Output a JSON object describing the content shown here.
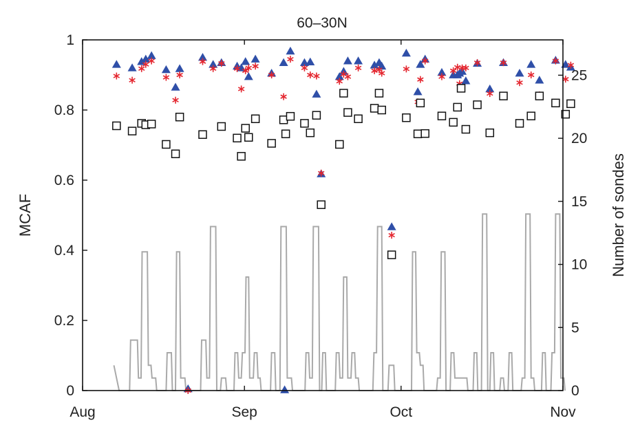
{
  "chart_data": {
    "type": "scatter",
    "title": "60–30N",
    "ylabel": "MCAF",
    "ylabel_right": "Number of sondes",
    "x_ticks": [
      "Aug",
      "Sep",
      "Oct",
      "Nov"
    ],
    "xlim_days": [
      0,
      92
    ],
    "ylim": [
      0,
      1
    ],
    "ylim_right": [
      0,
      27.8
    ],
    "yticks_left": [
      "0",
      "0.2",
      "0.4",
      "0.6",
      "0.8",
      "1"
    ],
    "yticks_right": [
      "0",
      "5",
      "10",
      "15",
      "20",
      "25"
    ],
    "grid": false,
    "series": [
      {
        "marker": "triangle",
        "color": "#2f4fa8",
        "points": [
          [
            6.5,
            0.93
          ],
          [
            9.5,
            0.92
          ],
          [
            11.3,
            0.938
          ],
          [
            12.1,
            0.945
          ],
          [
            13.2,
            0.955
          ],
          [
            16.0,
            0.915
          ],
          [
            17.8,
            0.865
          ],
          [
            18.6,
            0.918
          ],
          [
            20.2,
            0.005
          ],
          [
            23.0,
            0.95
          ],
          [
            25.0,
            0.93
          ],
          [
            26.6,
            0.935
          ],
          [
            29.6,
            0.925
          ],
          [
            30.4,
            0.92
          ],
          [
            31.2,
            0.938
          ],
          [
            31.8,
            0.895
          ],
          [
            33.1,
            0.945
          ],
          [
            36.2,
            0.905
          ],
          [
            38.5,
            0.935
          ],
          [
            38.7,
            0.002
          ],
          [
            39.8,
            0.968
          ],
          [
            42.5,
            0.935
          ],
          [
            43.6,
            0.937
          ],
          [
            44.8,
            0.845
          ],
          [
            45.7,
            0.618
          ],
          [
            49.2,
            0.895
          ],
          [
            50.0,
            0.91
          ],
          [
            50.8,
            0.94
          ],
          [
            52.8,
            0.94
          ],
          [
            55.9,
            0.928
          ],
          [
            56.8,
            0.935
          ],
          [
            57.3,
            0.925
          ],
          [
            59.2,
            0.467
          ],
          [
            62.0,
            0.962
          ],
          [
            64.2,
            0.852
          ],
          [
            64.7,
            0.93
          ],
          [
            65.6,
            0.945
          ],
          [
            68.8,
            0.907
          ],
          [
            71.0,
            0.9
          ],
          [
            71.8,
            0.9
          ],
          [
            72.2,
            0.905
          ],
          [
            72.7,
            0.91
          ],
          [
            73.4,
            0.883
          ],
          [
            75.6,
            0.933
          ],
          [
            78.0,
            0.86
          ],
          [
            80.6,
            0.935
          ],
          [
            83.7,
            0.905
          ],
          [
            85.9,
            0.93
          ],
          [
            87.5,
            0.885
          ],
          [
            90.6,
            0.942
          ],
          [
            92.5,
            0.93
          ],
          [
            93.5,
            0.922
          ]
        ]
      },
      {
        "marker": "asterisk",
        "color": "#e4262f",
        "points": [
          [
            6.5,
            0.897
          ],
          [
            9.5,
            0.885
          ],
          [
            11.3,
            0.918
          ],
          [
            12.1,
            0.93
          ],
          [
            13.2,
            0.94
          ],
          [
            16.0,
            0.893
          ],
          [
            17.8,
            0.828
          ],
          [
            18.6,
            0.9
          ],
          [
            20.2,
            0.0
          ],
          [
            23.0,
            0.938
          ],
          [
            25.0,
            0.918
          ],
          [
            26.6,
            0.933
          ],
          [
            29.6,
            0.918
          ],
          [
            30.4,
            0.86
          ],
          [
            31.2,
            0.912
          ],
          [
            31.8,
            0.92
          ],
          [
            33.1,
            0.925
          ],
          [
            36.2,
            0.9
          ],
          [
            38.5,
            0.838
          ],
          [
            39.8,
            0.945
          ],
          [
            42.5,
            0.92
          ],
          [
            43.6,
            0.9
          ],
          [
            44.8,
            0.897
          ],
          [
            45.7,
            0.62
          ],
          [
            49.2,
            0.882
          ],
          [
            50.0,
            0.902
          ],
          [
            50.8,
            0.895
          ],
          [
            52.8,
            0.92
          ],
          [
            55.9,
            0.912
          ],
          [
            56.8,
            0.915
          ],
          [
            57.3,
            0.905
          ],
          [
            59.2,
            0.443
          ],
          [
            62.0,
            0.917
          ],
          [
            64.2,
            0.823
          ],
          [
            64.7,
            0.887
          ],
          [
            65.6,
            0.94
          ],
          [
            68.8,
            0.895
          ],
          [
            71.0,
            0.912
          ],
          [
            71.8,
            0.922
          ],
          [
            72.2,
            0.875
          ],
          [
            72.7,
            0.92
          ],
          [
            73.4,
            0.92
          ],
          [
            75.6,
            0.935
          ],
          [
            78.0,
            0.847
          ],
          [
            80.6,
            0.935
          ],
          [
            83.7,
            0.878
          ],
          [
            85.9,
            0.9
          ],
          [
            87.5,
            0.843
          ],
          [
            90.6,
            0.94
          ],
          [
            92.5,
            0.888
          ],
          [
            93.5,
            0.928
          ]
        ]
      },
      {
        "marker": "square",
        "color": "#111111",
        "points": [
          [
            6.5,
            0.755
          ],
          [
            9.5,
            0.74
          ],
          [
            11.3,
            0.762
          ],
          [
            12.1,
            0.758
          ],
          [
            13.2,
            0.76
          ],
          [
            16.0,
            0.702
          ],
          [
            17.8,
            0.675
          ],
          [
            18.6,
            0.78
          ],
          [
            23.0,
            0.73
          ],
          [
            26.6,
            0.753
          ],
          [
            29.6,
            0.72
          ],
          [
            30.4,
            0.668
          ],
          [
            31.2,
            0.748
          ],
          [
            31.8,
            0.722
          ],
          [
            33.1,
            0.775
          ],
          [
            36.2,
            0.705
          ],
          [
            38.5,
            0.772
          ],
          [
            38.9,
            0.732
          ],
          [
            39.8,
            0.782
          ],
          [
            42.5,
            0.762
          ],
          [
            43.6,
            0.735
          ],
          [
            44.8,
            0.785
          ],
          [
            45.7,
            0.53
          ],
          [
            49.2,
            0.702
          ],
          [
            50.0,
            0.848
          ],
          [
            50.8,
            0.793
          ],
          [
            52.8,
            0.775
          ],
          [
            55.9,
            0.805
          ],
          [
            56.8,
            0.848
          ],
          [
            57.3,
            0.8
          ],
          [
            59.2,
            0.387
          ],
          [
            62.0,
            0.778
          ],
          [
            64.2,
            0.732
          ],
          [
            64.7,
            0.82
          ],
          [
            65.6,
            0.733
          ],
          [
            68.8,
            0.783
          ],
          [
            71.0,
            0.765
          ],
          [
            71.8,
            0.808
          ],
          [
            72.5,
            0.862
          ],
          [
            73.4,
            0.745
          ],
          [
            75.6,
            0.815
          ],
          [
            78.0,
            0.735
          ],
          [
            80.6,
            0.84
          ],
          [
            83.7,
            0.762
          ],
          [
            85.9,
            0.783
          ],
          [
            87.5,
            0.84
          ],
          [
            90.6,
            0.82
          ],
          [
            92.5,
            0.788
          ],
          [
            93.5,
            0.818
          ]
        ]
      },
      {
        "name": "Number of sondes",
        "axis": "right",
        "style": "step",
        "color": "#a9a9a9",
        "steps": [
          [
            6.0,
            2
          ],
          [
            7.0,
            0
          ],
          [
            9.0,
            0
          ],
          [
            9.2,
            4
          ],
          [
            10.5,
            4
          ],
          [
            10.7,
            1
          ],
          [
            11.2,
            1
          ],
          [
            11.4,
            11
          ],
          [
            12.4,
            11
          ],
          [
            12.6,
            2
          ],
          [
            13.1,
            2
          ],
          [
            13.3,
            1
          ],
          [
            14.0,
            1
          ],
          [
            14.2,
            0
          ],
          [
            16.0,
            0
          ],
          [
            16.2,
            3
          ],
          [
            17.0,
            3
          ],
          [
            17.2,
            0
          ],
          [
            17.8,
            0
          ],
          [
            18.0,
            11
          ],
          [
            18.6,
            11
          ],
          [
            18.8,
            1
          ],
          [
            19.6,
            1
          ],
          [
            19.8,
            0
          ],
          [
            22.6,
            0
          ],
          [
            22.8,
            4
          ],
          [
            23.6,
            4
          ],
          [
            23.8,
            1
          ],
          [
            24.3,
            1
          ],
          [
            24.5,
            13
          ],
          [
            25.5,
            13
          ],
          [
            25.7,
            0
          ],
          [
            26.4,
            0
          ],
          [
            26.6,
            1
          ],
          [
            27.4,
            1
          ],
          [
            27.6,
            0
          ],
          [
            29.0,
            0
          ],
          [
            29.2,
            3
          ],
          [
            29.7,
            3
          ],
          [
            29.9,
            1
          ],
          [
            30.4,
            1
          ],
          [
            30.6,
            3
          ],
          [
            31.1,
            3
          ],
          [
            31.3,
            9
          ],
          [
            31.8,
            9
          ],
          [
            32.0,
            1
          ],
          [
            32.7,
            1
          ],
          [
            32.9,
            3
          ],
          [
            33.4,
            3
          ],
          [
            33.6,
            1
          ],
          [
            34.0,
            1
          ],
          [
            34.2,
            0
          ],
          [
            36.0,
            0
          ],
          [
            36.2,
            3
          ],
          [
            36.8,
            3
          ],
          [
            37.0,
            0
          ],
          [
            37.8,
            0
          ],
          [
            38.0,
            13
          ],
          [
            39.0,
            13
          ],
          [
            39.2,
            1
          ],
          [
            40.0,
            1
          ],
          [
            40.2,
            0
          ],
          [
            42.6,
            0
          ],
          [
            42.8,
            3
          ],
          [
            43.3,
            3
          ],
          [
            43.5,
            1
          ],
          [
            44.0,
            1
          ],
          [
            44.2,
            13
          ],
          [
            45.2,
            13
          ],
          [
            45.4,
            0
          ],
          [
            45.8,
            0
          ],
          [
            46.0,
            3
          ],
          [
            46.5,
            3
          ],
          [
            46.7,
            0
          ],
          [
            48.4,
            0
          ],
          [
            48.6,
            3
          ],
          [
            49.1,
            3
          ],
          [
            49.3,
            1
          ],
          [
            49.8,
            1
          ],
          [
            50.0,
            9
          ],
          [
            50.6,
            9
          ],
          [
            50.8,
            1
          ],
          [
            51.4,
            1
          ],
          [
            51.6,
            3
          ],
          [
            52.1,
            3
          ],
          [
            52.3,
            1
          ],
          [
            52.8,
            1
          ],
          [
            53.0,
            0
          ],
          [
            55.6,
            0
          ],
          [
            55.8,
            3
          ],
          [
            56.3,
            3
          ],
          [
            56.5,
            13
          ],
          [
            57.3,
            13
          ],
          [
            57.5,
            0
          ],
          [
            58.5,
            0
          ],
          [
            58.7,
            2
          ],
          [
            59.6,
            2
          ],
          [
            59.8,
            0
          ],
          [
            63.0,
            0
          ],
          [
            63.2,
            11
          ],
          [
            63.8,
            11
          ],
          [
            64.0,
            3
          ],
          [
            64.5,
            3
          ],
          [
            64.7,
            2
          ],
          [
            65.2,
            2
          ],
          [
            65.4,
            0
          ],
          [
            67.8,
            0
          ],
          [
            68.0,
            1
          ],
          [
            68.5,
            1
          ],
          [
            68.7,
            11
          ],
          [
            69.4,
            11
          ],
          [
            69.6,
            0
          ],
          [
            70.4,
            0
          ],
          [
            70.6,
            3
          ],
          [
            71.1,
            3
          ],
          [
            71.3,
            1
          ],
          [
            73.6,
            1
          ],
          [
            73.8,
            0
          ],
          [
            74.8,
            0
          ],
          [
            75.0,
            3
          ],
          [
            75.5,
            3
          ],
          [
            75.7,
            0
          ],
          [
            76.4,
            0
          ],
          [
            76.6,
            14
          ],
          [
            77.4,
            14
          ],
          [
            77.6,
            0
          ],
          [
            78.0,
            0
          ],
          [
            78.2,
            3
          ],
          [
            78.7,
            3
          ],
          [
            78.9,
            0
          ],
          [
            79.9,
            0
          ],
          [
            80.1,
            1
          ],
          [
            80.6,
            1
          ],
          [
            80.8,
            0
          ],
          [
            81.5,
            0
          ],
          [
            81.7,
            3
          ],
          [
            82.2,
            3
          ],
          [
            82.4,
            0
          ],
          [
            84.0,
            0
          ],
          [
            84.2,
            1
          ],
          [
            84.7,
            1
          ],
          [
            84.9,
            14
          ],
          [
            85.7,
            14
          ],
          [
            85.9,
            1
          ],
          [
            86.4,
            1
          ],
          [
            86.6,
            0
          ],
          [
            87.9,
            0
          ],
          [
            88.1,
            3
          ],
          [
            88.6,
            3
          ],
          [
            88.8,
            0
          ],
          [
            89.7,
            0
          ],
          [
            89.9,
            3
          ],
          [
            90.4,
            3
          ],
          [
            90.6,
            14
          ],
          [
            91.4,
            14
          ],
          [
            91.6,
            1
          ],
          [
            92.2,
            1
          ],
          [
            92.4,
            0
          ]
        ]
      }
    ]
  }
}
